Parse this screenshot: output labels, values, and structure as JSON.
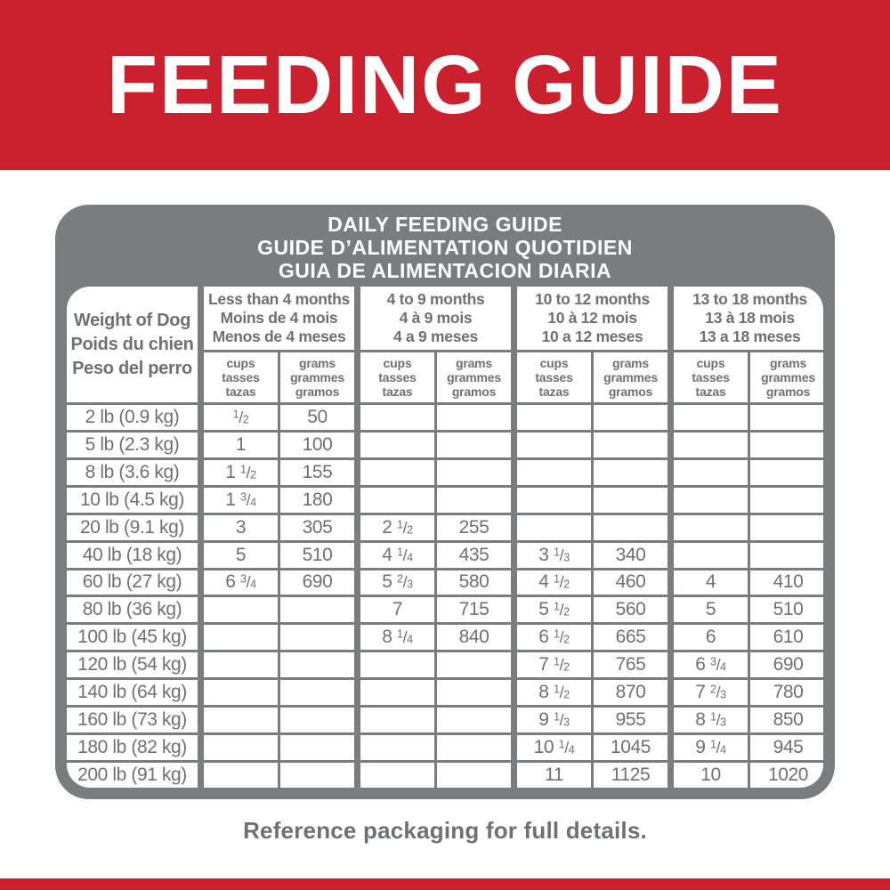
{
  "page": {
    "title": "FEEDING GUIDE",
    "footer": "Reference packaging for full details.",
    "colors": {
      "brand_red": "#cb202e",
      "panel_gray": "#797d80",
      "text_gray": "#6d7174"
    }
  },
  "table": {
    "title_lines": [
      "DAILY FEEDING GUIDE",
      "GUIDE D’ALIMENTATION QUOTIDIEN",
      "GUIA DE ALIMENTACION DIARIA"
    ],
    "weight_header_lines": [
      "Weight of Dog",
      "Poids du chien",
      "Peso del perro"
    ],
    "age_groups": [
      {
        "lines": [
          "Less than 4 months",
          "Moins de 4 mois",
          "Menos de 4 meses"
        ]
      },
      {
        "lines": [
          "4 to 9 months",
          "4 à 9 mois",
          "4 a 9 meses"
        ]
      },
      {
        "lines": [
          "10 to 12 months",
          "10 à 12 mois",
          "10 a 12 meses"
        ]
      },
      {
        "lines": [
          "13 to 18 months",
          "13 à 18 mois",
          "13 a 18 meses"
        ]
      }
    ],
    "unit_header_lines": {
      "cups": [
        "cups",
        "tasses",
        "tazas"
      ],
      "grams": [
        "grams",
        "grammes",
        "gramos"
      ]
    },
    "rows": [
      {
        "weight": "2 lb (0.9 kg)",
        "values": [
          "1/2",
          "50",
          "",
          "",
          "",
          "",
          "",
          ""
        ]
      },
      {
        "weight": "5 lb (2.3 kg)",
        "values": [
          "1",
          "100",
          "",
          "",
          "",
          "",
          "",
          ""
        ]
      },
      {
        "weight": "8 lb (3.6 kg)",
        "values": [
          "1 1/2",
          "155",
          "",
          "",
          "",
          "",
          "",
          ""
        ]
      },
      {
        "weight": "10 lb (4.5 kg)",
        "values": [
          "1 3/4",
          "180",
          "",
          "",
          "",
          "",
          "",
          ""
        ]
      },
      {
        "weight": "20 lb (9.1 kg)",
        "values": [
          "3",
          "305",
          "2 1/2",
          "255",
          "",
          "",
          "",
          ""
        ]
      },
      {
        "weight": "40 lb (18 kg)",
        "values": [
          "5",
          "510",
          "4 1/4",
          "435",
          "3 1/3",
          "340",
          "",
          ""
        ]
      },
      {
        "weight": "60 lb (27 kg)",
        "values": [
          "6 3/4",
          "690",
          "5 2/3",
          "580",
          "4 1/2",
          "460",
          "4",
          "410"
        ]
      },
      {
        "weight": "80 lb (36 kg)",
        "values": [
          "",
          "",
          "7",
          "715",
          "5 1/2",
          "560",
          "5",
          "510"
        ]
      },
      {
        "weight": "100 lb (45 kg)",
        "values": [
          "",
          "",
          "8 1/4",
          "840",
          "6 1/2",
          "665",
          "6",
          "610"
        ]
      },
      {
        "weight": "120 lb (54 kg)",
        "values": [
          "",
          "",
          "",
          "",
          "7 1/2",
          "765",
          "6 3/4",
          "690"
        ]
      },
      {
        "weight": "140 lb (64 kg)",
        "values": [
          "",
          "",
          "",
          "",
          "8 1/2",
          "870",
          "7 2/3",
          "780"
        ]
      },
      {
        "weight": "160 lb (73 kg)",
        "values": [
          "",
          "",
          "",
          "",
          "9 1/3",
          "955",
          "8 1/3",
          "850"
        ]
      },
      {
        "weight": "180 lb (82 kg)",
        "values": [
          "",
          "",
          "",
          "",
          "10 1/4",
          "1045",
          "9 1/4",
          "945"
        ]
      },
      {
        "weight": "200 lb (91 kg)",
        "values": [
          "",
          "",
          "",
          "",
          "11",
          "1125",
          "10",
          "1020"
        ]
      }
    ]
  }
}
